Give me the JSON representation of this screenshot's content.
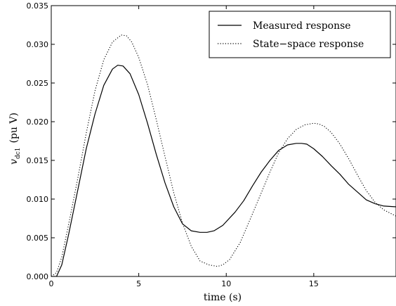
{
  "chart_data": {
    "type": "line",
    "title": "",
    "xlabel": "time  (s)",
    "ylabel": {
      "symbol": "v",
      "subscript": "dc1",
      "rest": "(pu  V)"
    },
    "xlim": [
      0,
      19.7
    ],
    "ylim": [
      0,
      0.035
    ],
    "xticks": [
      "0",
      "5",
      "10",
      "15"
    ],
    "xtick_values": [
      0,
      5,
      10,
      15
    ],
    "yticks": [
      "0.000",
      "0.005",
      "0.010",
      "0.015",
      "0.020",
      "0.025",
      "0.030",
      "0.035"
    ],
    "ytick_values": [
      0,
      0.005,
      0.01,
      0.015,
      0.02,
      0.025,
      0.03,
      0.035
    ],
    "grid": false,
    "legend_position": "top-right",
    "series": [
      {
        "name": "Measured  response",
        "style": "solid",
        "color": "#000000",
        "x": [
          0,
          0.3,
          0.6,
          1.0,
          1.5,
          2.0,
          2.5,
          3.0,
          3.5,
          3.8,
          4.1,
          4.5,
          5.0,
          5.5,
          6.0,
          6.5,
          7.0,
          7.5,
          8.0,
          8.5,
          8.9,
          9.3,
          9.8,
          10.5,
          11.0,
          11.5,
          12.0,
          12.5,
          13.0,
          13.5,
          14.0,
          14.3,
          14.6,
          15.0,
          15.5,
          16.0,
          16.5,
          17.0,
          17.5,
          18.0,
          18.5,
          19.0,
          19.7
        ],
        "y": [
          0,
          0.0,
          0.0015,
          0.0055,
          0.011,
          0.0165,
          0.021,
          0.0247,
          0.0268,
          0.0273,
          0.0272,
          0.0262,
          0.0235,
          0.0198,
          0.0158,
          0.0121,
          0.009,
          0.0068,
          0.0059,
          0.0057,
          0.0057,
          0.0059,
          0.0066,
          0.0083,
          0.0098,
          0.0117,
          0.0135,
          0.015,
          0.0163,
          0.017,
          0.0172,
          0.0172,
          0.0171,
          0.0165,
          0.0155,
          0.0143,
          0.0132,
          0.0119,
          0.0109,
          0.0099,
          0.0094,
          0.0091,
          0.009
        ]
      },
      {
        "name": "State−space  response",
        "style": "dotted",
        "color": "#000000",
        "x": [
          0,
          0.3,
          0.6,
          1.0,
          1.5,
          2.0,
          2.5,
          3.0,
          3.5,
          4.0,
          4.3,
          4.6,
          5.0,
          5.5,
          6.0,
          6.5,
          7.0,
          7.5,
          8.0,
          8.5,
          9.0,
          9.5,
          9.8,
          10.2,
          10.8,
          11.5,
          12.0,
          12.5,
          13.0,
          13.5,
          14.0,
          14.5,
          15.0,
          15.3,
          15.6,
          16.0,
          16.5,
          17.0,
          17.5,
          18.0,
          18.5,
          19.0,
          19.7
        ],
        "y": [
          0,
          0.0005,
          0.0025,
          0.0068,
          0.0125,
          0.0185,
          0.024,
          0.028,
          0.0303,
          0.0312,
          0.0311,
          0.0303,
          0.0283,
          0.0248,
          0.0203,
          0.0155,
          0.0108,
          0.0069,
          0.0039,
          0.002,
          0.0015,
          0.0013,
          0.0015,
          0.0022,
          0.0044,
          0.0081,
          0.0108,
          0.0135,
          0.016,
          0.0178,
          0.019,
          0.0196,
          0.0198,
          0.0197,
          0.0194,
          0.0186,
          0.0171,
          0.0152,
          0.0131,
          0.0111,
          0.0096,
          0.0086,
          0.0078
        ]
      }
    ]
  }
}
